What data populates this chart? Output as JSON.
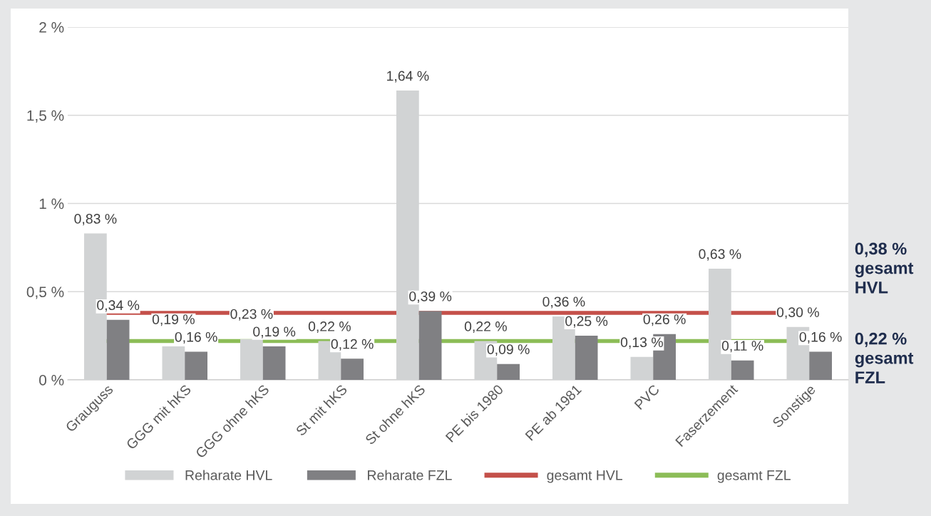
{
  "chart_data": {
    "type": "bar",
    "categories": [
      "Grauguss",
      "GGG mit hKS",
      "GGG ohne hKS",
      "St mit hKS",
      "St ohne hKS",
      "PE bis 1980",
      "PE ab 1981",
      "PVC",
      "Faserzement",
      "Sonstige"
    ],
    "series": [
      {
        "name": "Reharate HVL",
        "color": "#d1d3d4",
        "values": [
          0.83,
          0.19,
          0.23,
          0.22,
          1.64,
          0.22,
          0.36,
          0.13,
          0.63,
          0.3
        ],
        "value_labels": [
          "0,83 %",
          "0,19 %",
          "0,23 %",
          "0,22 %",
          "1,64 %",
          "0,22 %",
          "0,36 %",
          "0,13 %",
          "0,63 %",
          "0,30 %"
        ]
      },
      {
        "name": "Reharate FZL",
        "color": "#808083",
        "values": [
          0.34,
          0.16,
          0.19,
          0.12,
          0.39,
          0.09,
          0.25,
          0.26,
          0.11,
          0.16
        ],
        "value_labels": [
          "0,34 %",
          "0,16 %",
          "0,19 %",
          "0,12 %",
          "0,39 %",
          "0,09 %",
          "0,25 %",
          "0,26 %",
          "0,11 %",
          "0,16 %"
        ]
      }
    ],
    "ref_lines": [
      {
        "axis": "y",
        "value": 0.38,
        "label": "gesamt HVL",
        "color": "#c4504a"
      },
      {
        "axis": "y",
        "value": 0.22,
        "label": "gesamt FZL",
        "color": "#8cbd57"
      }
    ],
    "ylim": [
      0,
      2
    ],
    "yticks": [
      {
        "value": 0,
        "label": "0 %"
      },
      {
        "value": 0.5,
        "label": "0,5 %"
      },
      {
        "value": 1,
        "label": "1 %"
      },
      {
        "value": 1.5,
        "label": "1,5 %"
      },
      {
        "value": 2,
        "label": "2 %"
      }
    ],
    "grid": "y",
    "legend": "bottom",
    "annotations": [
      "0,38 %\ngesamt\nHVL",
      "0,22 %\ngesamt\nFZL"
    ]
  }
}
